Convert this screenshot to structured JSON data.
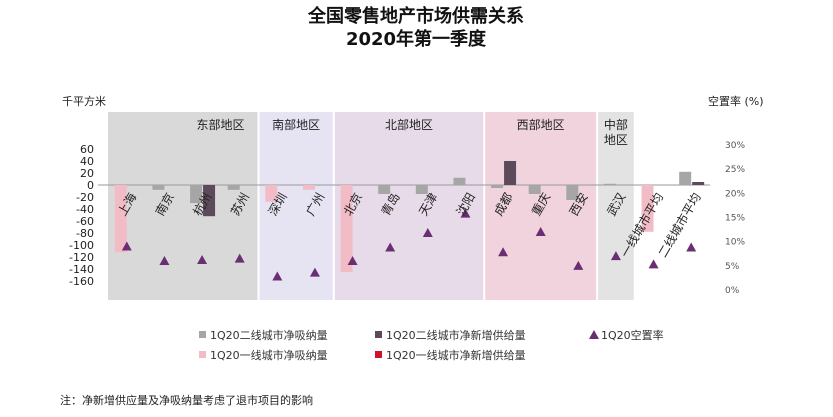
{
  "chart_data": {
    "type": "bar",
    "title_line1": "全国零售地产市场供需关系",
    "title_line2": "2020年第一季度",
    "ylabel_left": "千平方米",
    "ylabel_right": "空置率 (%)",
    "ylim_left": [
      -160,
      60
    ],
    "left_ticks": [
      "60",
      "40",
      "20",
      "0",
      "-20",
      "-40",
      "-60",
      "-80",
      "-100",
      "-120",
      "-140",
      "-160"
    ],
    "left_tick_values": [
      60,
      40,
      20,
      0,
      -20,
      -40,
      -60,
      -80,
      -100,
      -120,
      -140,
      -160
    ],
    "ylim_right": [
      0,
      30
    ],
    "right_ticks": [
      "30%",
      "25%",
      "20%",
      "15%",
      "10%",
      "5%",
      "0%"
    ],
    "right_tick_values": [
      30,
      25,
      20,
      15,
      10,
      5,
      0
    ],
    "categories": [
      "上海",
      "南京",
      "杭州",
      "苏州",
      "深圳",
      "广州",
      "北京",
      "青岛",
      "天津",
      "沈阳",
      "成都",
      "重庆",
      "西安",
      "武汉",
      "一线城市平均",
      "二线城市平均"
    ],
    "regions": [
      {
        "label": "东部地区",
        "start": 0,
        "end": 3,
        "color": "#d9d9d9"
      },
      {
        "label": "南部地区",
        "start": 4,
        "end": 5,
        "color": "#e6e3f2"
      },
      {
        "label": "北部地区",
        "start": 6,
        "end": 9,
        "color": "#e8dbe9"
      },
      {
        "label": "西部地区",
        "start": 10,
        "end": 12,
        "color": "#f0d3dd"
      },
      {
        "label": "中部\n地区",
        "start": 13,
        "end": 13,
        "color": "#e3e3e3"
      }
    ],
    "series": [
      {
        "name": "1Q20二线城市净吸纳量",
        "color": "#a6a6a6",
        "kind": "bar",
        "slot": 1,
        "values": [
          null,
          -8,
          -30,
          -8,
          null,
          null,
          null,
          -15,
          -15,
          12,
          -5,
          -15,
          -25,
          2,
          null,
          22
        ]
      },
      {
        "name": "1Q20二线城市净新增供给量",
        "color": "#5c4a5a",
        "kind": "bar",
        "slot": 2,
        "values": [
          null,
          null,
          -52,
          null,
          null,
          null,
          null,
          null,
          null,
          null,
          40,
          null,
          null,
          null,
          null,
          5
        ]
      },
      {
        "name": "1Q20空置率",
        "color": "#6a2f73",
        "kind": "marker",
        "values": [
          9,
          6,
          6.2,
          6.5,
          2.8,
          3.6,
          6,
          8.8,
          11.8,
          15.8,
          7.8,
          12,
          5,
          7,
          5.3,
          8.8
        ]
      },
      {
        "name": "1Q20一线城市净吸纳量",
        "color": "#f2bcc7",
        "kind": "bar",
        "slot": 1,
        "values": [
          -112,
          null,
          null,
          null,
          -28,
          -8,
          -145,
          null,
          null,
          null,
          null,
          null,
          null,
          null,
          -78,
          null
        ]
      },
      {
        "name": "1Q20一线城市净新增供给量",
        "color": "#d0112b",
        "kind": "bar",
        "slot": 2,
        "values": [
          null,
          null,
          null,
          null,
          null,
          null,
          null,
          null,
          null,
          null,
          null,
          null,
          null,
          null,
          null,
          null
        ]
      }
    ]
  },
  "legend_row1": [
    "1Q20二线城市净吸纳量",
    "1Q20二线城市净新增供给量",
    "1Q20空置率"
  ],
  "legend_row2": [
    "1Q20一线城市净吸纳量",
    "1Q20一线城市净新增供给量"
  ],
  "note": "注：净新增供应量及净吸纳量考虑了退市项目的影响"
}
